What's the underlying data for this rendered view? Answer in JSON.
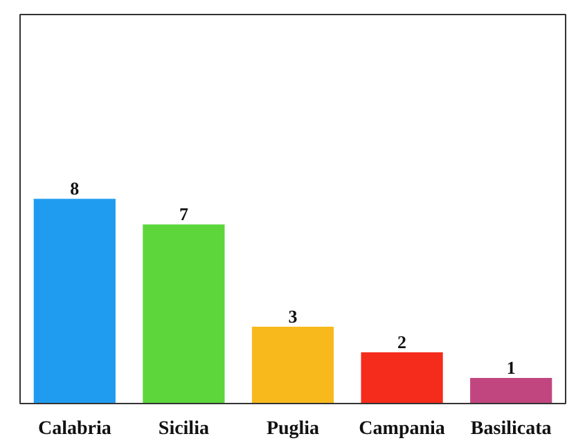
{
  "chart_data": {
    "type": "bar",
    "categories": [
      "Calabria",
      "Sicilia",
      "Puglia",
      "Campania",
      "Basilicata"
    ],
    "values": [
      8,
      7,
      3,
      2,
      1
    ],
    "colors": [
      "#1f9cf0",
      "#5cd63b",
      "#f8b91c",
      "#f52b1b",
      "#c1467f"
    ],
    "data_labels": true
  }
}
